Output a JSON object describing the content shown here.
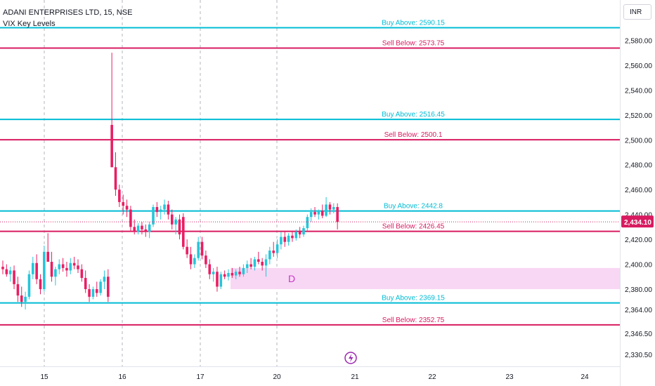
{
  "header": {
    "symbol": "ADANI ENTERPRISES LTD, 15, NSE",
    "indicator": "VIX Key Levels"
  },
  "currency_button": "INR",
  "colors": {
    "buy": "#00bcd4",
    "sell": "#d81b60",
    "up_candle": "#26c6da",
    "down_candle": "#e91e63",
    "zone": "#f8d7f4",
    "zone_label": "#c838c8",
    "grid": "#b2b5be",
    "axis_text": "#131722"
  },
  "chart_data": {
    "type": "candlestick",
    "x_ticks": [
      "15",
      "16",
      "17",
      "20",
      "21",
      "22",
      "23",
      "24"
    ],
    "y_ticks": [
      2580,
      2560,
      2540,
      2520,
      2500,
      2480,
      2460,
      2440,
      2420,
      2400,
      2380,
      2364,
      2346.5,
      2330.5
    ],
    "y_tick_labels": [
      "2,580.00",
      "2,560.00",
      "2,540.00",
      "2,520.00",
      "2,500.00",
      "2,480.00",
      "2,460.00",
      "2,440.00",
      "2,420.00",
      "2,400.00",
      "2,380.00",
      "2,364.00",
      "2,346.50",
      "2,330.50"
    ],
    "ylim": [
      2320,
      2605
    ],
    "session_separators": [
      "16",
      "17",
      "20"
    ],
    "last_price": 2434.1,
    "last_price_label": "2,434.10",
    "levels": [
      {
        "type": "buy",
        "value": 2590.15,
        "label": "Buy Above: 2590.15"
      },
      {
        "type": "sell",
        "value": 2573.75,
        "label": "Sell Below: 2573.75"
      },
      {
        "type": "buy",
        "value": 2516.45,
        "label": "Buy Above: 2516.45"
      },
      {
        "type": "sell",
        "value": 2500.1,
        "label": "Sell Below: 2500.1"
      },
      {
        "type": "buy",
        "value": 2442.8,
        "label": "Buy Above: 2442.8"
      },
      {
        "type": "sell",
        "value": 2426.45,
        "label": "Sell Below: 2426.45"
      },
      {
        "type": "buy",
        "value": 2369.15,
        "label": "Buy Above: 2369.15"
      },
      {
        "type": "sell",
        "value": 2352.75,
        "label": "Sell Below: 2352.75"
      }
    ],
    "zone": {
      "label": "D",
      "low": 2380,
      "high": 2397
    },
    "candles": [
      [
        2398,
        2403,
        2392,
        2396
      ],
      [
        2396,
        2400,
        2390,
        2392
      ],
      [
        2392,
        2398,
        2386,
        2395
      ],
      [
        2395,
        2399,
        2380,
        2384
      ],
      [
        2384,
        2390,
        2370,
        2375
      ],
      [
        2375,
        2382,
        2366,
        2370
      ],
      [
        2370,
        2378,
        2364,
        2374
      ],
      [
        2374,
        2395,
        2372,
        2392
      ],
      [
        2392,
        2406,
        2388,
        2401
      ],
      [
        2401,
        2408,
        2384,
        2388
      ],
      [
        2388,
        2392,
        2376,
        2380
      ],
      [
        2380,
        2415,
        2378,
        2410
      ],
      [
        2410,
        2425,
        2404,
        2402
      ],
      [
        2402,
        2410,
        2386,
        2390
      ],
      [
        2390,
        2398,
        2383,
        2396
      ],
      [
        2396,
        2404,
        2392,
        2400
      ],
      [
        2400,
        2405,
        2394,
        2397
      ],
      [
        2397,
        2402,
        2390,
        2395
      ],
      [
        2395,
        2405,
        2392,
        2401
      ],
      [
        2401,
        2406,
        2396,
        2399
      ],
      [
        2399,
        2404,
        2393,
        2396
      ],
      [
        2396,
        2400,
        2386,
        2389
      ],
      [
        2389,
        2395,
        2377,
        2380
      ],
      [
        2380,
        2384,
        2370,
        2374
      ],
      [
        2374,
        2382,
        2372,
        2380
      ],
      [
        2380,
        2386,
        2374,
        2377
      ],
      [
        2377,
        2388,
        2375,
        2386
      ],
      [
        2386,
        2395,
        2380,
        2390
      ],
      [
        2390,
        2396,
        2370,
        2374
      ],
      [
        2512,
        2570,
        2478,
        2478
      ],
      [
        2478,
        2490,
        2455,
        2460
      ],
      [
        2460,
        2464,
        2446,
        2450
      ],
      [
        2450,
        2456,
        2440,
        2447
      ],
      [
        2447,
        2452,
        2438,
        2444
      ],
      [
        2444,
        2447,
        2426,
        2430
      ],
      [
        2430,
        2436,
        2424,
        2426
      ],
      [
        2426,
        2433,
        2424,
        2431
      ],
      [
        2431,
        2434,
        2424,
        2428
      ],
      [
        2428,
        2432,
        2422,
        2426
      ],
      [
        2426,
        2434,
        2421,
        2432
      ],
      [
        2432,
        2448,
        2430,
        2446
      ],
      [
        2446,
        2450,
        2438,
        2442
      ],
      [
        2442,
        2447,
        2436,
        2444
      ],
      [
        2444,
        2452,
        2440,
        2448
      ],
      [
        2448,
        2451,
        2436,
        2440
      ],
      [
        2440,
        2444,
        2428,
        2432
      ],
      [
        2432,
        2438,
        2424,
        2436
      ],
      [
        2436,
        2440,
        2420,
        2424
      ],
      [
        2438,
        2441,
        2412,
        2414
      ],
      [
        2414,
        2420,
        2405,
        2408
      ],
      [
        2408,
        2414,
        2396,
        2400
      ],
      [
        2400,
        2408,
        2397,
        2405
      ],
      [
        2405,
        2422,
        2403,
        2418
      ],
      [
        2418,
        2422,
        2404,
        2407
      ],
      [
        2407,
        2411,
        2397,
        2400
      ],
      [
        2400,
        2404,
        2388,
        2392
      ],
      [
        2392,
        2397,
        2386,
        2394
      ],
      [
        2394,
        2398,
        2378,
        2382
      ],
      [
        2382,
        2394,
        2380,
        2392
      ],
      [
        2392,
        2395,
        2388,
        2390
      ],
      [
        2390,
        2396,
        2387,
        2393
      ],
      [
        2393,
        2397,
        2389,
        2391
      ],
      [
        2391,
        2396,
        2388,
        2394
      ],
      [
        2394,
        2398,
        2390,
        2392
      ],
      [
        2392,
        2400,
        2390,
        2397
      ],
      [
        2397,
        2403,
        2393,
        2400
      ],
      [
        2400,
        2405,
        2396,
        2398
      ],
      [
        2398,
        2406,
        2395,
        2404
      ],
      [
        2404,
        2410,
        2400,
        2402
      ],
      [
        2402,
        2405,
        2395,
        2399
      ],
      [
        2399,
        2408,
        2390,
        2404
      ],
      [
        2404,
        2414,
        2400,
        2411
      ],
      [
        2411,
        2418,
        2406,
        2409
      ],
      [
        2409,
        2420,
        2405,
        2416
      ],
      [
        2416,
        2426,
        2412,
        2422
      ],
      [
        2422,
        2426,
        2414,
        2418
      ],
      [
        2418,
        2425,
        2415,
        2423
      ],
      [
        2423,
        2427,
        2418,
        2421
      ],
      [
        2421,
        2428,
        2419,
        2426
      ],
      [
        2426,
        2430,
        2421,
        2424
      ],
      [
        2424,
        2431,
        2422,
        2429
      ],
      [
        2429,
        2440,
        2427,
        2438
      ],
      [
        2438,
        2445,
        2434,
        2442
      ],
      [
        2442,
        2446,
        2438,
        2440
      ],
      [
        2440,
        2444,
        2436,
        2443
      ],
      [
        2443,
        2448,
        2437,
        2439
      ],
      [
        2439,
        2454,
        2438,
        2448
      ],
      [
        2448,
        2450,
        2440,
        2444
      ],
      [
        2444,
        2449,
        2441,
        2446
      ],
      [
        2446,
        2449,
        2428,
        2434
      ]
    ],
    "candle_start_x": 4,
    "candle_spacing": 5.35
  }
}
